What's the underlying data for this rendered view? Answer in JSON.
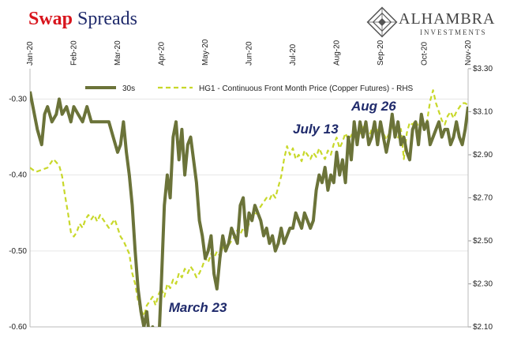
{
  "title": {
    "part1": "Swap",
    "part2": "Spreads"
  },
  "logo": {
    "name": "ALHAMBRA",
    "sub": "INVESTMENTS"
  },
  "colors": {
    "series_30s": "#6b7339",
    "series_copper": "#c8d82a",
    "title_red": "#d8141c",
    "navy": "#1f2a6b"
  },
  "chart_data": {
    "type": "line",
    "x_tick_labels": [
      "Jan-20",
      "Feb-20",
      "Mar-20",
      "Apr-20",
      "May-20",
      "Jun-20",
      "Jul-20",
      "Aug-20",
      "Sep-20",
      "Oct-20",
      "Nov-20"
    ],
    "y_left": {
      "ticks": [
        "-0.30",
        "-0.40",
        "-0.50",
        "-0.60"
      ],
      "range": [
        -0.6,
        -0.26
      ]
    },
    "y_right": {
      "ticks": [
        "$3.30",
        "$3.10",
        "$2.90",
        "$2.70",
        "$2.50",
        "$2.30",
        "$2.10"
      ],
      "range": [
        2.1,
        3.3
      ]
    },
    "grid": true,
    "legend_position": "top",
    "series": [
      {
        "name": "30s",
        "axis": "left",
        "points": [
          [
            0,
            -0.29
          ],
          [
            2,
            -0.31
          ],
          [
            5,
            -0.34
          ],
          [
            8,
            -0.36
          ],
          [
            10,
            -0.32
          ],
          [
            12,
            -0.31
          ],
          [
            15,
            -0.33
          ],
          [
            18,
            -0.32
          ],
          [
            20,
            -0.3
          ],
          [
            22,
            -0.32
          ],
          [
            25,
            -0.31
          ],
          [
            28,
            -0.33
          ],
          [
            30,
            -0.31
          ],
          [
            33,
            -0.32
          ],
          [
            36,
            -0.33
          ],
          [
            39,
            -0.31
          ],
          [
            42,
            -0.33
          ],
          [
            45,
            -0.33
          ],
          [
            48,
            -0.33
          ],
          [
            51,
            -0.33
          ],
          [
            54,
            -0.33
          ],
          [
            57,
            -0.35
          ],
          [
            60,
            -0.37
          ],
          [
            62,
            -0.36
          ],
          [
            64,
            -0.33
          ],
          [
            66,
            -0.37
          ],
          [
            68,
            -0.4
          ],
          [
            70,
            -0.44
          ],
          [
            72,
            -0.5
          ],
          [
            74,
            -0.55
          ],
          [
            76,
            -0.58
          ],
          [
            78,
            -0.6
          ],
          [
            80,
            -0.58
          ],
          [
            82,
            -0.62
          ],
          [
            84,
            -0.6
          ],
          [
            86,
            -0.62
          ],
          [
            88,
            -0.63
          ],
          [
            90,
            -0.54
          ],
          [
            92,
            -0.44
          ],
          [
            94,
            -0.4
          ],
          [
            96,
            -0.43
          ],
          [
            98,
            -0.35
          ],
          [
            100,
            -0.33
          ],
          [
            102,
            -0.38
          ],
          [
            104,
            -0.34
          ],
          [
            106,
            -0.4
          ],
          [
            108,
            -0.36
          ],
          [
            110,
            -0.35
          ],
          [
            112,
            -0.38
          ],
          [
            114,
            -0.41
          ],
          [
            116,
            -0.46
          ],
          [
            118,
            -0.48
          ],
          [
            120,
            -0.51
          ],
          [
            122,
            -0.5
          ],
          [
            124,
            -0.48
          ],
          [
            126,
            -0.53
          ],
          [
            128,
            -0.55
          ],
          [
            130,
            -0.51
          ],
          [
            132,
            -0.48
          ],
          [
            134,
            -0.5
          ],
          [
            136,
            -0.49
          ],
          [
            138,
            -0.47
          ],
          [
            140,
            -0.48
          ],
          [
            142,
            -0.49
          ],
          [
            144,
            -0.44
          ],
          [
            146,
            -0.43
          ],
          [
            148,
            -0.48
          ],
          [
            150,
            -0.45
          ],
          [
            152,
            -0.46
          ],
          [
            154,
            -0.44
          ],
          [
            156,
            -0.45
          ],
          [
            158,
            -0.46
          ],
          [
            160,
            -0.48
          ],
          [
            162,
            -0.47
          ],
          [
            164,
            -0.49
          ],
          [
            166,
            -0.48
          ],
          [
            168,
            -0.5
          ],
          [
            170,
            -0.49
          ],
          [
            172,
            -0.47
          ],
          [
            174,
            -0.49
          ],
          [
            176,
            -0.48
          ],
          [
            178,
            -0.47
          ],
          [
            180,
            -0.47
          ],
          [
            182,
            -0.45
          ],
          [
            184,
            -0.46
          ],
          [
            186,
            -0.47
          ],
          [
            188,
            -0.45
          ],
          [
            190,
            -0.46
          ],
          [
            192,
            -0.47
          ],
          [
            194,
            -0.46
          ],
          [
            196,
            -0.42
          ],
          [
            198,
            -0.4
          ],
          [
            200,
            -0.41
          ],
          [
            202,
            -0.39
          ],
          [
            204,
            -0.42
          ],
          [
            206,
            -0.4
          ],
          [
            208,
            -0.41
          ],
          [
            210,
            -0.37
          ],
          [
            212,
            -0.4
          ],
          [
            214,
            -0.38
          ],
          [
            216,
            -0.41
          ],
          [
            218,
            -0.35
          ],
          [
            220,
            -0.38
          ],
          [
            222,
            -0.33
          ],
          [
            224,
            -0.36
          ],
          [
            226,
            -0.33
          ],
          [
            228,
            -0.35
          ],
          [
            230,
            -0.33
          ],
          [
            232,
            -0.36
          ],
          [
            234,
            -0.35
          ],
          [
            236,
            -0.33
          ],
          [
            238,
            -0.36
          ],
          [
            240,
            -0.33
          ],
          [
            242,
            -0.35
          ],
          [
            244,
            -0.37
          ],
          [
            246,
            -0.35
          ],
          [
            248,
            -0.32
          ],
          [
            250,
            -0.35
          ],
          [
            252,
            -0.33
          ],
          [
            254,
            -0.36
          ],
          [
            256,
            -0.35
          ],
          [
            258,
            -0.37
          ],
          [
            260,
            -0.38
          ],
          [
            262,
            -0.34
          ],
          [
            264,
            -0.33
          ],
          [
            266,
            -0.36
          ],
          [
            268,
            -0.32
          ],
          [
            270,
            -0.34
          ],
          [
            272,
            -0.33
          ],
          [
            274,
            -0.36
          ],
          [
            276,
            -0.35
          ],
          [
            278,
            -0.34
          ],
          [
            280,
            -0.33
          ],
          [
            282,
            -0.35
          ],
          [
            284,
            -0.34
          ],
          [
            286,
            -0.34
          ],
          [
            288,
            -0.36
          ],
          [
            290,
            -0.35
          ],
          [
            292,
            -0.33
          ],
          [
            294,
            -0.35
          ],
          [
            296,
            -0.36
          ],
          [
            298,
            -0.34
          ],
          [
            300,
            -0.31
          ]
        ]
      },
      {
        "name": "HG1 - Continuous Front Month Price (Copper Futures) - RHS",
        "axis": "right",
        "points": [
          [
            0,
            2.84
          ],
          [
            4,
            2.82
          ],
          [
            8,
            2.83
          ],
          [
            12,
            2.84
          ],
          [
            16,
            2.88
          ],
          [
            20,
            2.85
          ],
          [
            22,
            2.8
          ],
          [
            24,
            2.71
          ],
          [
            26,
            2.63
          ],
          [
            28,
            2.54
          ],
          [
            30,
            2.52
          ],
          [
            32,
            2.54
          ],
          [
            34,
            2.58
          ],
          [
            36,
            2.56
          ],
          [
            38,
            2.6
          ],
          [
            40,
            2.62
          ],
          [
            42,
            2.6
          ],
          [
            44,
            2.62
          ],
          [
            46,
            2.59
          ],
          [
            48,
            2.62
          ],
          [
            50,
            2.6
          ],
          [
            52,
            2.58
          ],
          [
            54,
            2.56
          ],
          [
            56,
            2.58
          ],
          [
            58,
            2.6
          ],
          [
            60,
            2.56
          ],
          [
            62,
            2.52
          ],
          [
            64,
            2.5
          ],
          [
            66,
            2.47
          ],
          [
            68,
            2.44
          ],
          [
            70,
            2.35
          ],
          [
            72,
            2.3
          ],
          [
            74,
            2.22
          ],
          [
            76,
            2.18
          ],
          [
            78,
            2.15
          ],
          [
            80,
            2.2
          ],
          [
            82,
            2.22
          ],
          [
            84,
            2.24
          ],
          [
            86,
            2.2
          ],
          [
            88,
            2.25
          ],
          [
            90,
            2.28
          ],
          [
            92,
            2.24
          ],
          [
            94,
            2.3
          ],
          [
            96,
            2.28
          ],
          [
            98,
            2.32
          ],
          [
            100,
            2.3
          ],
          [
            102,
            2.35
          ],
          [
            104,
            2.33
          ],
          [
            106,
            2.37
          ],
          [
            108,
            2.35
          ],
          [
            110,
            2.38
          ],
          [
            112,
            2.36
          ],
          [
            114,
            2.33
          ],
          [
            116,
            2.35
          ],
          [
            118,
            2.38
          ],
          [
            120,
            2.42
          ],
          [
            122,
            2.4
          ],
          [
            124,
            2.44
          ],
          [
            126,
            2.42
          ],
          [
            128,
            2.45
          ],
          [
            130,
            2.43
          ],
          [
            132,
            2.47
          ],
          [
            134,
            2.45
          ],
          [
            136,
            2.48
          ],
          [
            138,
            2.5
          ],
          [
            140,
            2.52
          ],
          [
            142,
            2.55
          ],
          [
            144,
            2.53
          ],
          [
            146,
            2.56
          ],
          [
            148,
            2.54
          ],
          [
            150,
            2.58
          ],
          [
            152,
            2.6
          ],
          [
            154,
            2.62
          ],
          [
            156,
            2.64
          ],
          [
            158,
            2.66
          ],
          [
            160,
            2.68
          ],
          [
            162,
            2.7
          ],
          [
            164,
            2.69
          ],
          [
            166,
            2.72
          ],
          [
            168,
            2.7
          ],
          [
            170,
            2.75
          ],
          [
            172,
            2.8
          ],
          [
            174,
            2.88
          ],
          [
            176,
            2.94
          ],
          [
            178,
            2.9
          ],
          [
            180,
            2.93
          ],
          [
            182,
            2.88
          ],
          [
            184,
            2.9
          ],
          [
            186,
            2.87
          ],
          [
            188,
            2.92
          ],
          [
            190,
            2.9
          ],
          [
            192,
            2.88
          ],
          [
            194,
            2.91
          ],
          [
            196,
            2.89
          ],
          [
            198,
            2.93
          ],
          [
            200,
            2.9
          ],
          [
            202,
            2.88
          ],
          [
            204,
            2.92
          ],
          [
            206,
            2.9
          ],
          [
            208,
            2.95
          ],
          [
            210,
            2.98
          ],
          [
            212,
            2.93
          ],
          [
            214,
            2.96
          ],
          [
            216,
            3.0
          ],
          [
            218,
            2.97
          ],
          [
            220,
            2.99
          ],
          [
            222,
            3.02
          ],
          [
            224,
            2.98
          ],
          [
            226,
            3.0
          ],
          [
            228,
            3.03
          ],
          [
            230,
            3.01
          ],
          [
            232,
            2.98
          ],
          [
            234,
            3.02
          ],
          [
            236,
            3.04
          ],
          [
            238,
            3.01
          ],
          [
            240,
            3.03
          ],
          [
            242,
            3.0
          ],
          [
            244,
            2.97
          ],
          [
            246,
            3.0
          ],
          [
            248,
            3.03
          ],
          [
            250,
            3.01
          ],
          [
            252,
            2.98
          ],
          [
            254,
            3.02
          ],
          [
            256,
            2.88
          ],
          [
            258,
            3.0
          ],
          [
            260,
            3.05
          ],
          [
            262,
            3.04
          ],
          [
            264,
            3.06
          ],
          [
            266,
            3.03
          ],
          [
            268,
            3.05
          ],
          [
            270,
            3.02
          ],
          [
            272,
            3.06
          ],
          [
            274,
            3.15
          ],
          [
            276,
            3.2
          ],
          [
            278,
            3.14
          ],
          [
            280,
            3.1
          ],
          [
            282,
            3.06
          ],
          [
            284,
            3.04
          ],
          [
            286,
            3.08
          ],
          [
            288,
            3.1
          ],
          [
            290,
            3.07
          ],
          [
            292,
            3.1
          ],
          [
            294,
            3.12
          ],
          [
            296,
            3.14
          ],
          [
            298,
            3.14
          ],
          [
            300,
            3.13
          ]
        ]
      }
    ],
    "annotations": [
      {
        "text": "March 23",
        "x": 95,
        "y": -0.58,
        "axis": "left"
      },
      {
        "text": "July 13",
        "x": 180,
        "y": -0.345,
        "axis": "left"
      },
      {
        "text": "Aug 26",
        "x": 220,
        "y": -0.315,
        "axis": "left"
      }
    ]
  }
}
